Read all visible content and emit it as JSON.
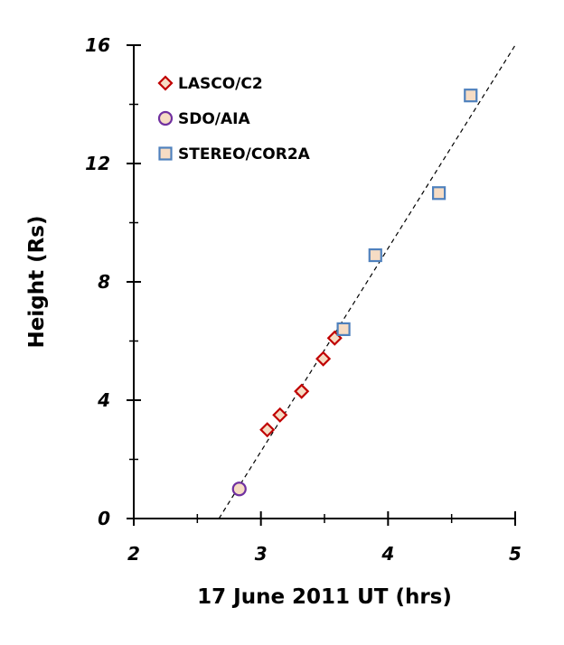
{
  "chart_data": {
    "type": "scatter",
    "title": "",
    "xlabel": "17 June 2011 UT (hrs)",
    "ylabel": "Height (Rs)",
    "xlim": [
      2,
      5
    ],
    "ylim": [
      0,
      16
    ],
    "xticks": [
      2,
      3,
      4,
      5
    ],
    "yticks": [
      0,
      4,
      8,
      12,
      16
    ],
    "grid": false,
    "legend_position": "top-left",
    "series": [
      {
        "name": "LASCO/C2",
        "marker": "diamond",
        "color": "#c00000",
        "fill": "#f6dcc4",
        "points": [
          {
            "x": 3.05,
            "y": 3.0
          },
          {
            "x": 3.15,
            "y": 3.5
          },
          {
            "x": 3.32,
            "y": 4.3
          },
          {
            "x": 3.49,
            "y": 5.4
          },
          {
            "x": 3.58,
            "y": 6.1
          }
        ]
      },
      {
        "name": "SDO/AIA",
        "marker": "circle",
        "color": "#7030a0",
        "fill": "#f6dcc4",
        "points": [
          {
            "x": 2.83,
            "y": 1.0
          }
        ]
      },
      {
        "name": "STEREO/COR2A",
        "marker": "square",
        "color": "#4f81bd",
        "fill": "#f6dcc4",
        "points": [
          {
            "x": 3.65,
            "y": 6.4
          },
          {
            "x": 3.9,
            "y": 8.9
          },
          {
            "x": 4.4,
            "y": 11.0
          },
          {
            "x": 4.65,
            "y": 14.3
          }
        ]
      }
    ],
    "fit_line": {
      "style": "dashed",
      "color": "#000000",
      "from": {
        "x": 2.67,
        "y": 0
      },
      "to": {
        "x": 5.0,
        "y": 16
      }
    }
  }
}
